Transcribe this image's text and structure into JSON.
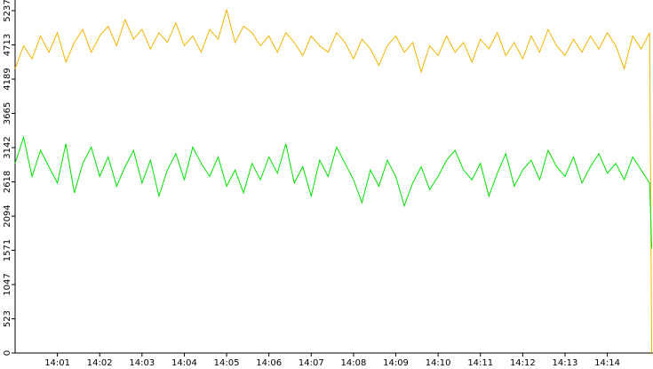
{
  "chart_data": {
    "type": "line",
    "x": [
      0,
      0.2,
      0.4,
      0.6,
      0.8,
      1,
      1.2,
      1.4,
      1.6,
      1.8,
      2,
      2.2,
      2.4,
      2.6,
      2.8,
      3,
      3.2,
      3.4,
      3.6,
      3.8,
      4,
      4.2,
      4.4,
      4.6,
      4.8,
      5,
      5.2,
      5.4,
      5.6,
      5.8,
      6,
      6.2,
      6.4,
      6.6,
      6.8,
      7,
      7.2,
      7.4,
      7.6,
      7.8,
      8,
      8.2,
      8.4,
      8.6,
      8.8,
      9,
      9.2,
      9.4,
      9.6,
      9.8,
      10,
      10.2,
      10.4,
      10.6,
      10.8,
      11,
      11.2,
      11.4,
      11.6,
      11.8,
      12,
      12.2,
      12.4,
      12.6,
      12.8,
      13,
      13.2,
      13.4,
      13.6,
      13.8,
      14,
      14.2,
      14.4,
      14.6,
      14.8,
      15,
      15.05
    ],
    "series": [
      {
        "color": "#f0b400",
        "values": [
          4350,
          4700,
          4500,
          4850,
          4600,
          4900,
          4450,
          4750,
          4950,
          4600,
          4850,
          5000,
          4700,
          5100,
          4800,
          4950,
          4650,
          4900,
          4750,
          5050,
          4700,
          4850,
          4600,
          4950,
          4800,
          5250,
          4750,
          5000,
          4900,
          4700,
          4850,
          4600,
          4900,
          4750,
          4550,
          4850,
          4700,
          4600,
          4900,
          4750,
          4500,
          4800,
          4650,
          4400,
          4700,
          4850,
          4600,
          4750,
          4300,
          4700,
          4550,
          4850,
          4600,
          4750,
          4450,
          4800,
          4650,
          4900,
          4550,
          4750,
          4500,
          4850,
          4600,
          4950,
          4700,
          4550,
          4800,
          4600,
          4850,
          4650,
          4900,
          4700,
          4350,
          4850,
          4650,
          4900,
          0
        ]
      },
      {
        "color": "#00e000",
        "values": [
          2900,
          3300,
          2700,
          3100,
          2850,
          2600,
          3200,
          2450,
          2900,
          3150,
          2700,
          3000,
          2550,
          2850,
          3100,
          2600,
          2950,
          2400,
          2800,
          3050,
          2650,
          3150,
          2900,
          2700,
          3000,
          2550,
          2800,
          2450,
          2900,
          2650,
          3000,
          2750,
          3200,
          2600,
          2850,
          2400,
          2950,
          2700,
          3150,
          2900,
          2650,
          2300,
          2800,
          2550,
          2950,
          2700,
          2250,
          2600,
          2850,
          2500,
          2700,
          2950,
          3100,
          2800,
          2650,
          2900,
          2400,
          2750,
          3050,
          2550,
          2800,
          2950,
          2650,
          3100,
          2850,
          2700,
          3000,
          2600,
          2850,
          3050,
          2750,
          2900,
          2650,
          3000,
          2800,
          2600,
          1600
        ]
      }
    ],
    "xlim": [
      0,
      15.08
    ],
    "xticks": [
      {
        "value": 1,
        "label": "14:01"
      },
      {
        "value": 2,
        "label": "14:02"
      },
      {
        "value": 3,
        "label": "14:03"
      },
      {
        "value": 4,
        "label": "14:04"
      },
      {
        "value": 5,
        "label": "14:05"
      },
      {
        "value": 6,
        "label": "14:06"
      },
      {
        "value": 7,
        "label": "14:07"
      },
      {
        "value": 8,
        "label": "14:08"
      },
      {
        "value": 9,
        "label": "14:09"
      },
      {
        "value": 10,
        "label": "14:10"
      },
      {
        "value": 11,
        "label": "14:11"
      },
      {
        "value": 12,
        "label": "14:12"
      },
      {
        "value": 13,
        "label": "14:13"
      },
      {
        "value": 14,
        "label": "14:14"
      }
    ],
    "ylim": [
      0,
      5400
    ],
    "yticks": [
      0,
      523,
      1047,
      1571,
      2094,
      2618,
      3142,
      3665,
      4189,
      4713,
      5237
    ],
    "grid": false
  }
}
